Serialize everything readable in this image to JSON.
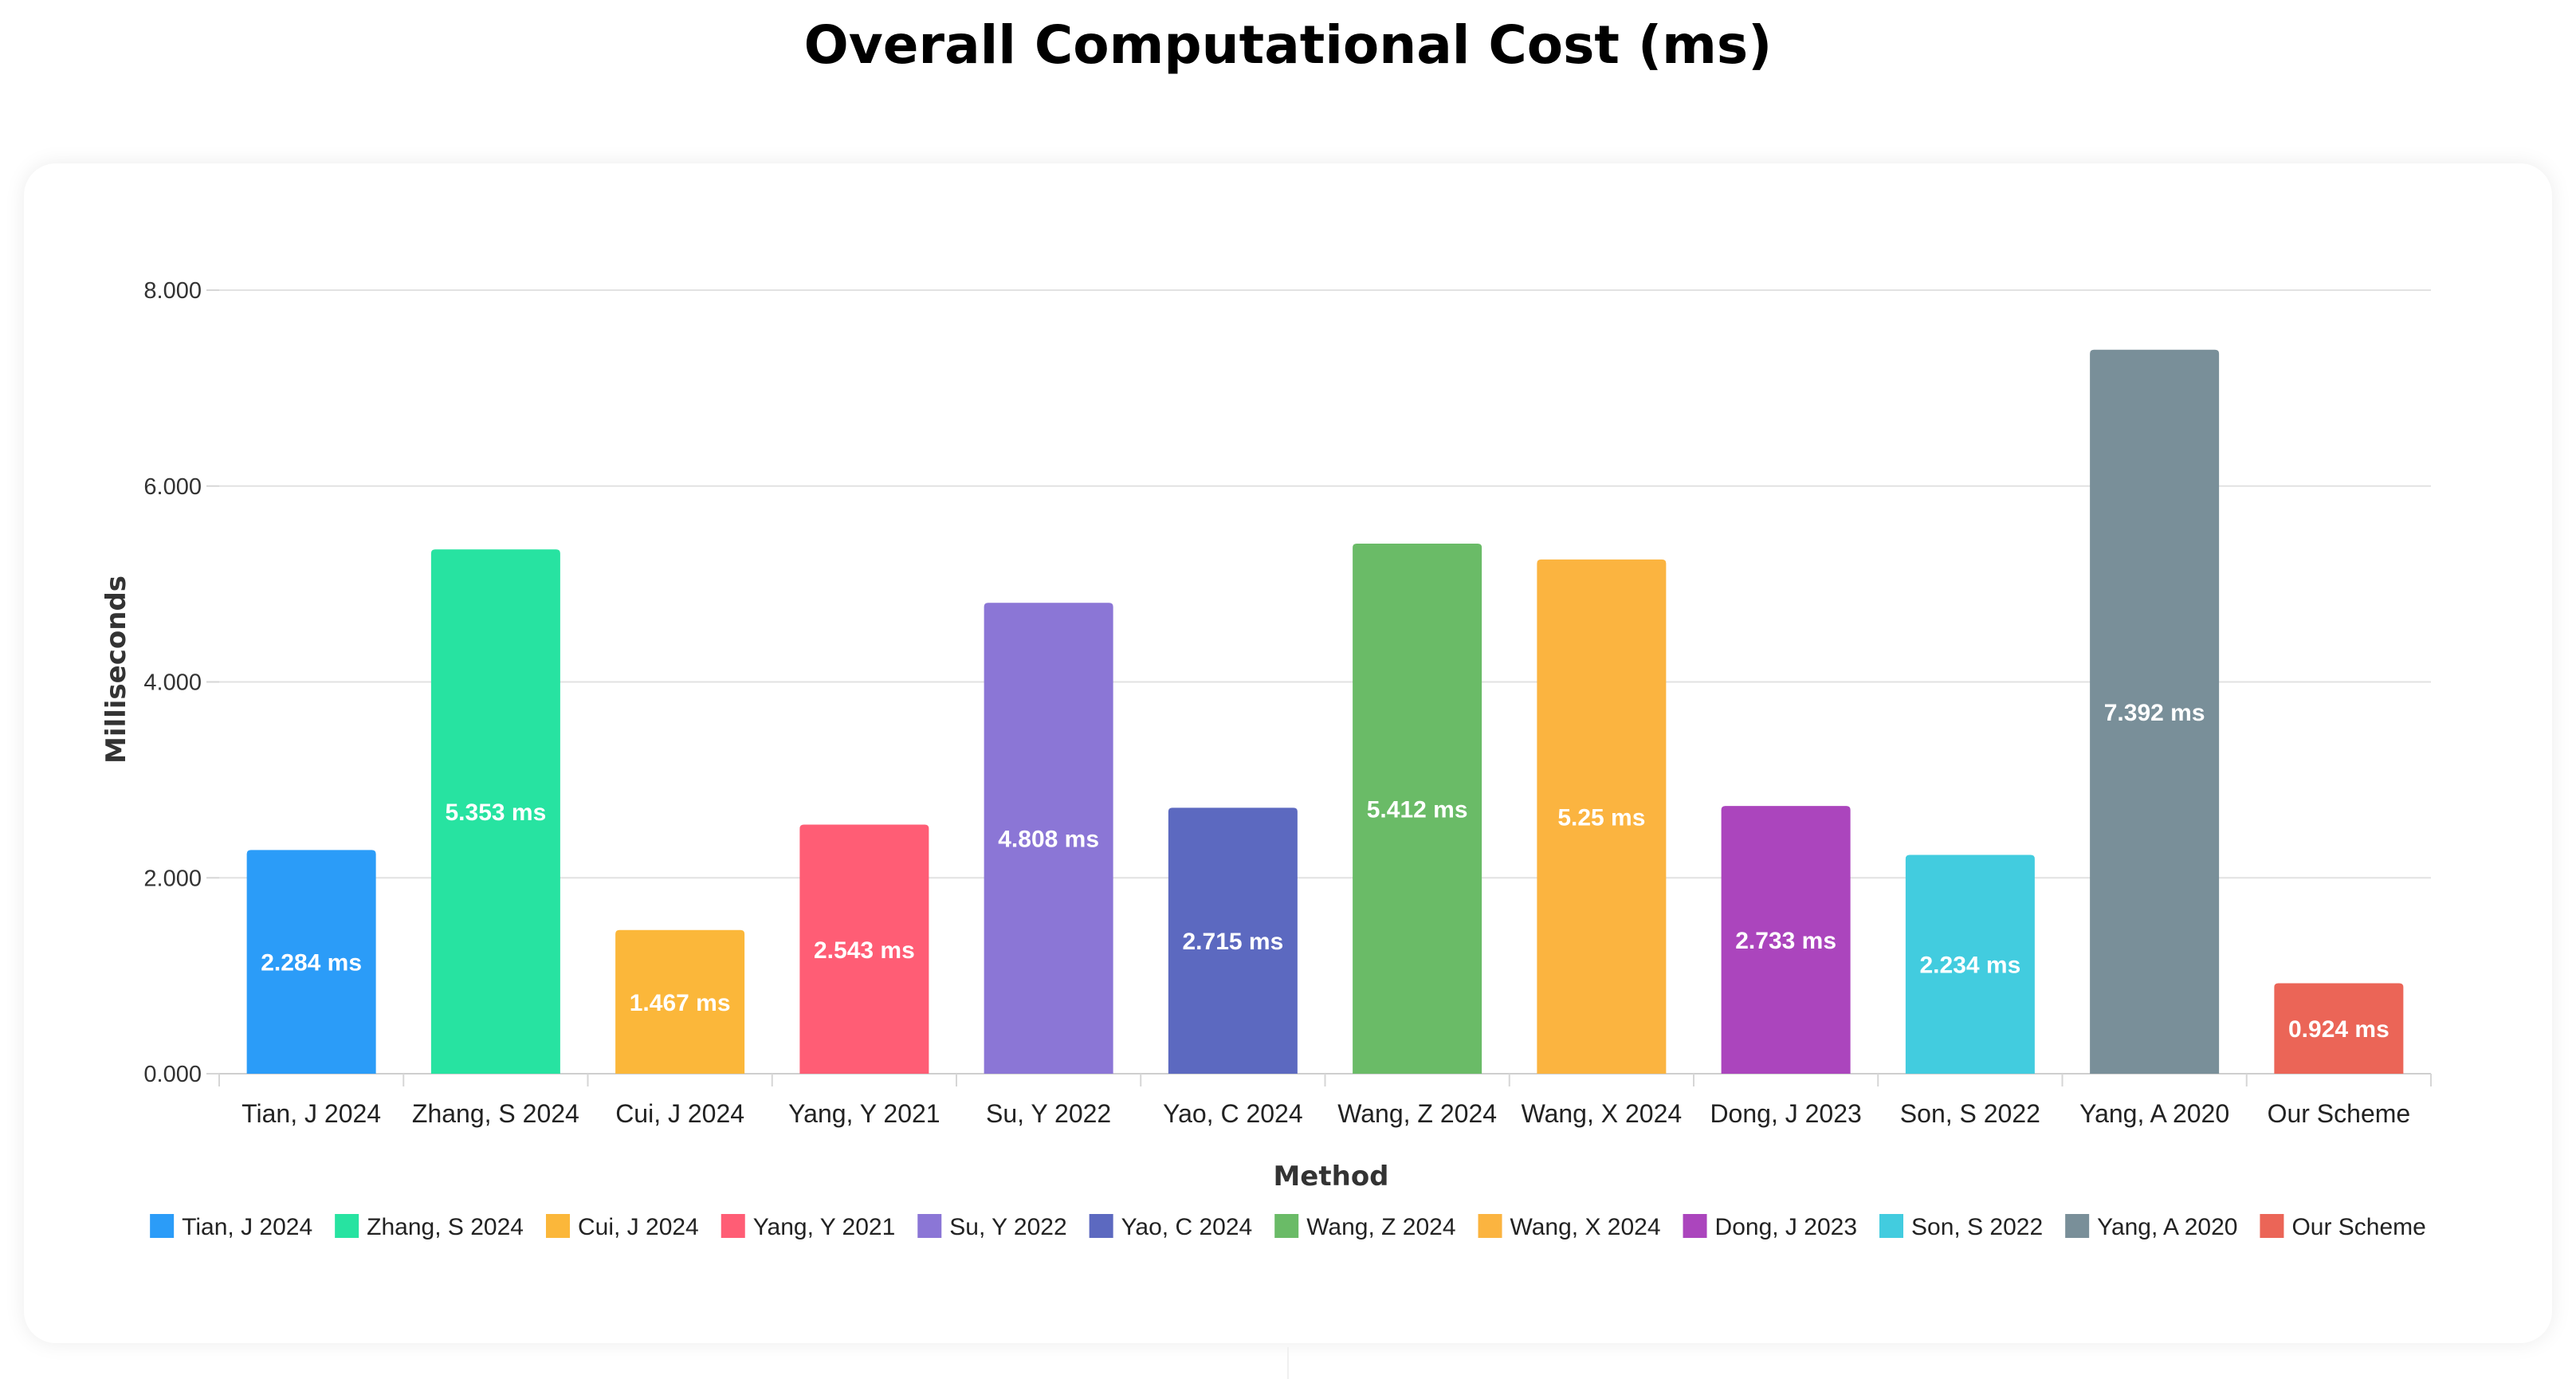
{
  "chart_data": {
    "type": "bar",
    "title": "Overall Computational Cost (ms)",
    "xlabel": "Method",
    "ylabel": "Milliseconds",
    "ylim": [
      0,
      8
    ],
    "yticks": [
      0,
      2,
      4,
      6,
      8
    ],
    "ytick_labels": [
      "0.000",
      "2.000",
      "4.000",
      "6.000",
      "8.000"
    ],
    "grid": true,
    "legend_position": "bottom",
    "categories": [
      "Tian, J 2024",
      "Zhang, S 2024",
      "Cui, J 2024",
      "Yang, Y 2021",
      "Su, Y 2022",
      "Yao, C 2024",
      "Wang, Z 2024",
      "Wang, X 2024",
      "Dong, J 2023",
      "Son, S 2022",
      "Yang, A 2020",
      "Our Scheme"
    ],
    "values": [
      2.284,
      5.353,
      1.467,
      2.543,
      4.808,
      2.715,
      5.412,
      5.25,
      2.733,
      2.234,
      7.392,
      0.924
    ],
    "value_labels": [
      "2.284 ms",
      "5.353 ms",
      "1.467 ms",
      "2.543 ms",
      "4.808 ms",
      "2.715 ms",
      "5.412 ms",
      "5.25 ms",
      "2.733 ms",
      "2.234 ms",
      "7.392 ms",
      "0.924 ms"
    ],
    "colors": [
      "#2b9cf8",
      "#27e3a1",
      "#fbb73a",
      "#ff5d75",
      "#8b76d6",
      "#5c69c0",
      "#6abb67",
      "#fbb440",
      "#ab45bd",
      "#42ccdf",
      "#798f99",
      "#eb6557"
    ]
  }
}
